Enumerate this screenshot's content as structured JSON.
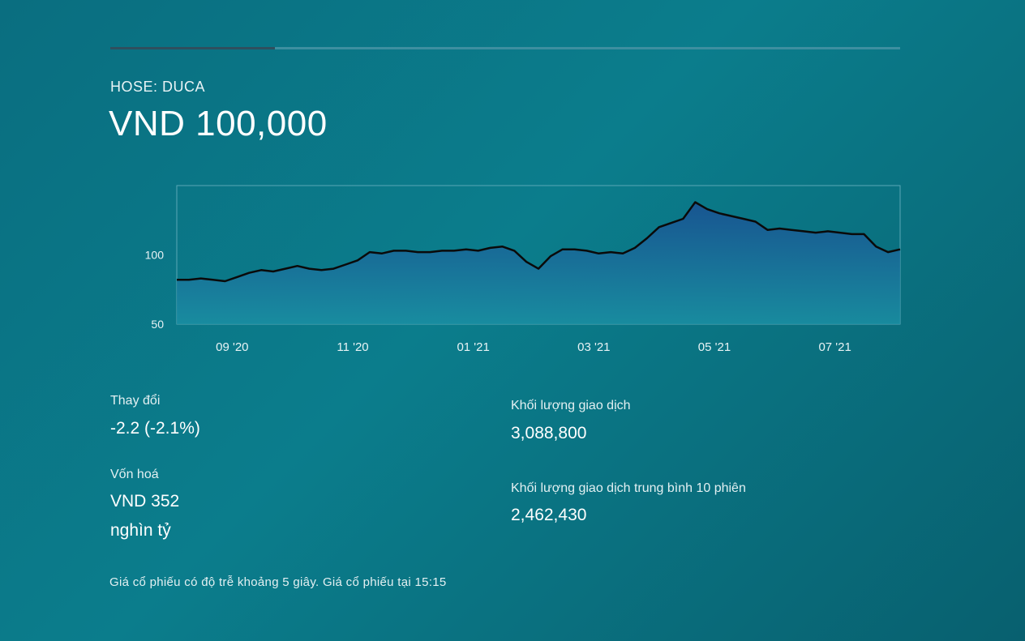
{
  "header": {
    "ticker": "HOSE: DUCA",
    "price": "VND 100,000"
  },
  "chart_data": {
    "type": "area",
    "yticks": [
      "100",
      "50"
    ],
    "ytick_values": [
      100,
      50
    ],
    "ylim": [
      50,
      150
    ],
    "xticks": [
      "09 '20",
      "11 '20",
      "01 '21",
      "03 '21",
      "05 '21",
      "07 '21"
    ],
    "xtick_values": [
      1,
      3,
      5,
      7,
      9,
      11
    ],
    "xlim": [
      0,
      12
    ],
    "grid": false,
    "legend": "none",
    "colors": {
      "line": "#0a0a0a",
      "fill_top": "#1b4f93",
      "fill_bottom": "#1a8fa3"
    },
    "x": [
      0.0,
      0.2,
      0.4,
      0.6,
      0.8,
      1.0,
      1.2,
      1.4,
      1.6,
      1.8,
      2.0,
      2.2,
      2.4,
      2.6,
      2.8,
      3.0,
      3.2,
      3.4,
      3.6,
      3.8,
      4.0,
      4.2,
      4.4,
      4.6,
      4.8,
      5.0,
      5.2,
      5.4,
      5.6,
      5.8,
      6.0,
      6.2,
      6.4,
      6.6,
      6.8,
      7.0,
      7.2,
      7.4,
      7.6,
      7.8,
      8.0,
      8.2,
      8.4,
      8.6,
      8.8,
      9.0,
      9.2,
      9.4,
      9.6,
      9.8,
      10.0,
      10.2,
      10.4,
      10.6,
      10.8,
      11.0,
      11.2,
      11.4,
      11.6,
      11.8,
      12.0
    ],
    "values": [
      82,
      82,
      83,
      82,
      81,
      84,
      87,
      89,
      88,
      90,
      92,
      90,
      89,
      90,
      93,
      96,
      102,
      101,
      103,
      103,
      102,
      102,
      103,
      103,
      104,
      103,
      105,
      106,
      103,
      95,
      90,
      99,
      104,
      104,
      103,
      101,
      102,
      101,
      105,
      112,
      120,
      123,
      126,
      138,
      133,
      130,
      128,
      126,
      124,
      118,
      119,
      118,
      117,
      116,
      117,
      116,
      115,
      115,
      106,
      102,
      104
    ]
  },
  "stats": {
    "change_label": "Thay đổi",
    "change_value": "-2.2 (-2.1%)",
    "cap_label": "Vốn hoá",
    "cap_value_line1": "VND 352",
    "cap_value_line2": "nghìn tỷ",
    "volume_label": "Khối lượng giao dịch",
    "volume_value": "3,088,800",
    "avg_volume_label": "Khối lượng giao dịch trung bình 10 phiên",
    "avg_volume_value": "2,462,430"
  },
  "footnote": "Giá cổ phiếu có độ trễ khoảng 5 giây. Giá cổ phiếu tại 15:15"
}
